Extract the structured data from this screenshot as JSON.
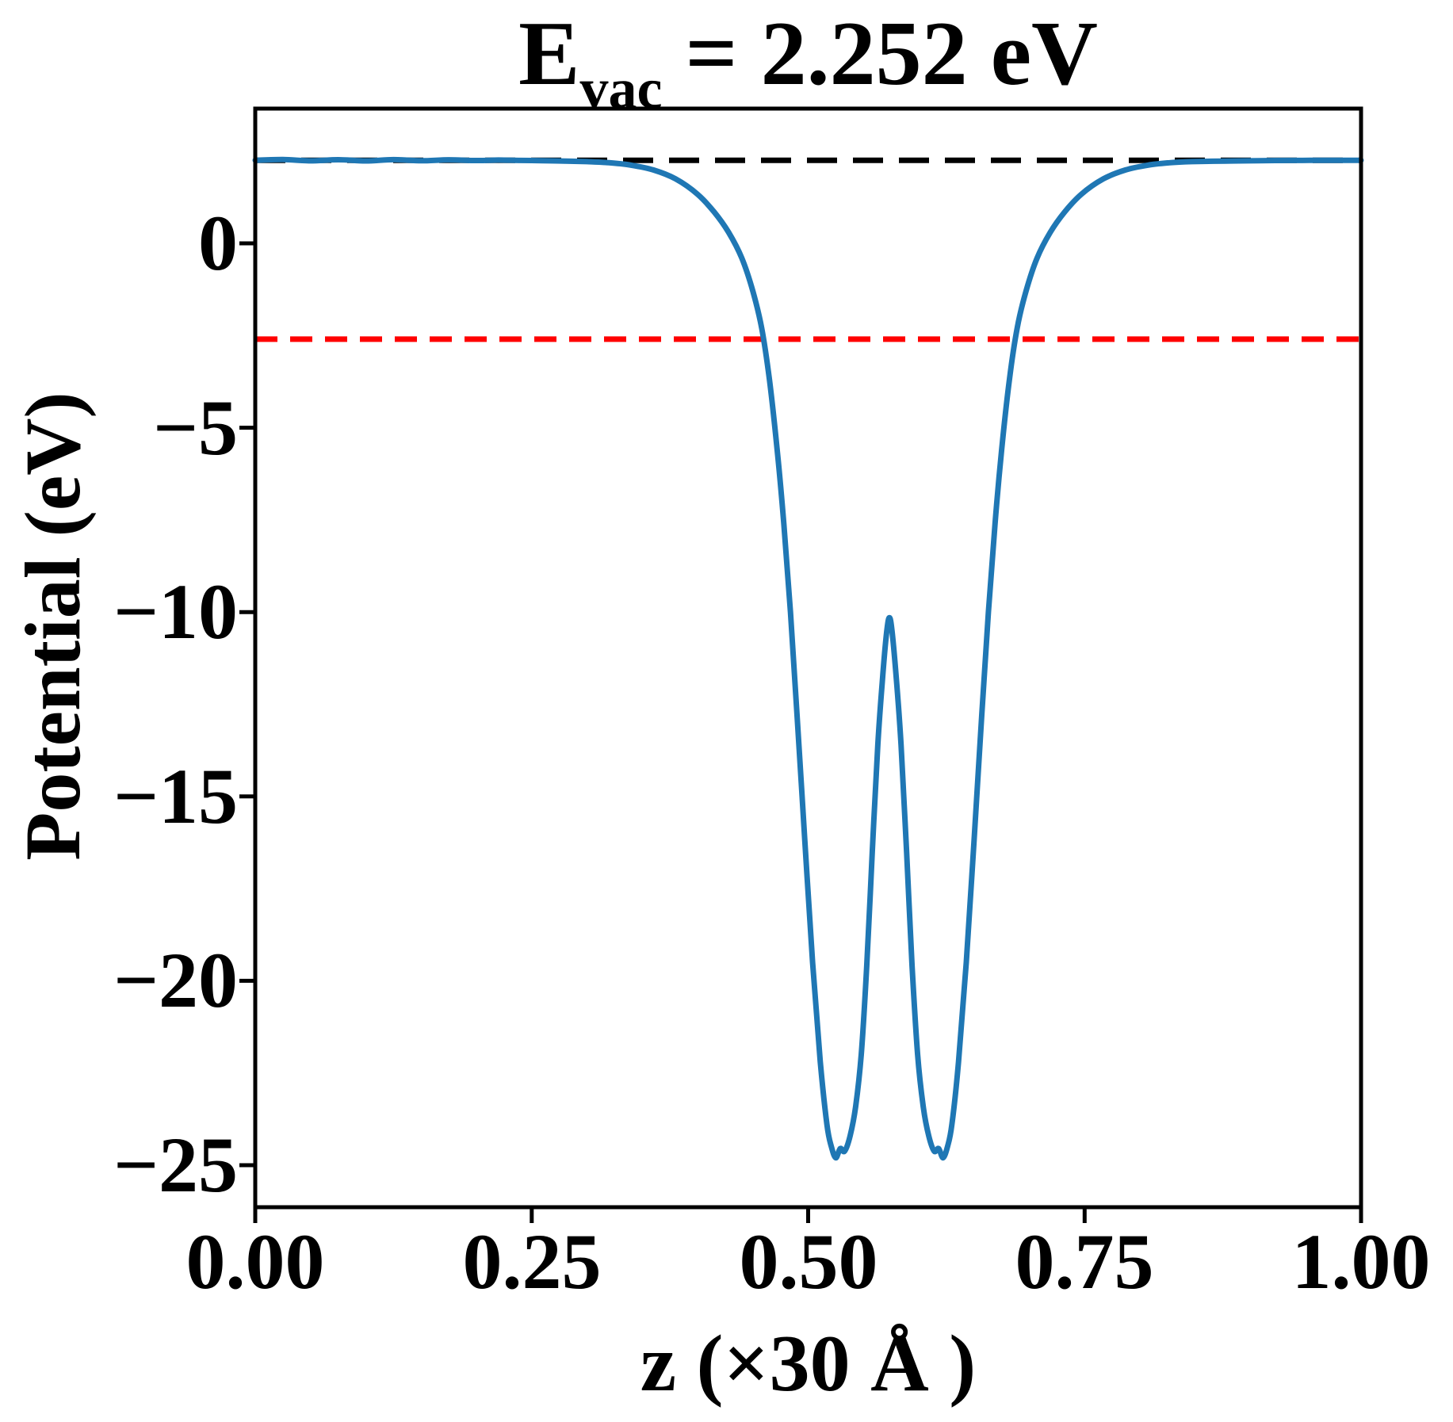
{
  "title": {
    "prefix": "E",
    "subscript": "vac",
    "rest": " = 2.252 eV"
  },
  "axes": {
    "x_label": "z (×30 Å )",
    "y_label": "Potential (eV)",
    "x_ticks": [
      "0.00",
      "0.25",
      "0.50",
      "0.75",
      "1.00"
    ],
    "y_ticks": [
      "0",
      "−5",
      "−10",
      "−15",
      "−20",
      "−25"
    ]
  },
  "colors": {
    "curve": "#1f77b4",
    "vacuum_line": "#000000",
    "reference_line": "#ff0000",
    "axis": "#000000",
    "background": "#ffffff"
  },
  "chart_data": {
    "type": "line",
    "title": "E_vac = 2.252 eV",
    "xlabel": "z (×30 Å )",
    "ylabel": "Potential (eV)",
    "xlim": [
      0,
      1
    ],
    "ylim": [
      -26.14,
      3.654
    ],
    "x_tick_values": [
      0,
      0.25,
      0.5,
      0.75,
      1
    ],
    "y_tick_values": [
      0,
      -5,
      -10,
      -15,
      -20,
      -25
    ],
    "grid": false,
    "legend": "none",
    "annotations": {
      "E_vac_eV": 2.252
    },
    "series": [
      {
        "name": "planar-averaged electrostatic potential",
        "type": "line",
        "color": "#1f77b4",
        "linestyle": "solid",
        "x": [
          0.0,
          0.025,
          0.05,
          0.075,
          0.1,
          0.125,
          0.15,
          0.175,
          0.2,
          0.22,
          0.24,
          0.26,
          0.28,
          0.3,
          0.32,
          0.34,
          0.36,
          0.38,
          0.4,
          0.415,
          0.428,
          0.44,
          0.45,
          0.458,
          0.465,
          0.472,
          0.478,
          0.484,
          0.49,
          0.497,
          0.504,
          0.511,
          0.517,
          0.521,
          0.525,
          0.529,
          0.533,
          0.538,
          0.543,
          0.548,
          0.553,
          0.558,
          0.563,
          0.567,
          0.571,
          0.5735,
          0.576,
          0.58,
          0.584,
          0.589,
          0.594,
          0.599,
          0.604,
          0.609,
          0.614,
          0.618,
          0.622,
          0.626,
          0.63,
          0.636,
          0.643,
          0.65,
          0.657,
          0.663,
          0.669,
          0.675,
          0.682,
          0.689,
          0.697,
          0.707,
          0.719,
          0.732,
          0.747,
          0.767,
          0.787,
          0.807,
          0.827,
          0.847,
          0.877,
          0.907,
          0.937,
          0.967,
          1.0
        ],
        "y": [
          2.252,
          2.272,
          2.238,
          2.268,
          2.236,
          2.27,
          2.24,
          2.265,
          2.245,
          2.258,
          2.248,
          2.242,
          2.232,
          2.215,
          2.185,
          2.12,
          1.99,
          1.75,
          1.33,
          0.85,
          0.3,
          -0.4,
          -1.3,
          -2.3,
          -3.7,
          -5.6,
          -7.6,
          -10.0,
          -12.8,
          -16.2,
          -19.5,
          -22.2,
          -23.9,
          -24.5,
          -24.8,
          -24.55,
          -24.62,
          -24.2,
          -23.4,
          -22.0,
          -19.6,
          -16.5,
          -13.6,
          -11.9,
          -10.55,
          -10.15,
          -10.55,
          -11.9,
          -13.6,
          -16.5,
          -19.6,
          -22.0,
          -23.4,
          -24.2,
          -24.62,
          -24.55,
          -24.8,
          -24.5,
          -23.9,
          -22.2,
          -19.5,
          -16.2,
          -12.8,
          -10.0,
          -7.6,
          -5.6,
          -3.7,
          -2.3,
          -1.3,
          -0.4,
          0.3,
          0.85,
          1.33,
          1.75,
          1.99,
          2.12,
          2.185,
          2.215,
          2.232,
          2.242,
          2.248,
          2.252,
          2.252
        ]
      },
      {
        "name": "vacuum level",
        "type": "hline",
        "color": "#000000",
        "linestyle": "dashed",
        "y": 2.252
      },
      {
        "name": "reference level",
        "type": "hline",
        "color": "#ff0000",
        "linestyle": "dashed",
        "y": -2.6
      }
    ]
  }
}
